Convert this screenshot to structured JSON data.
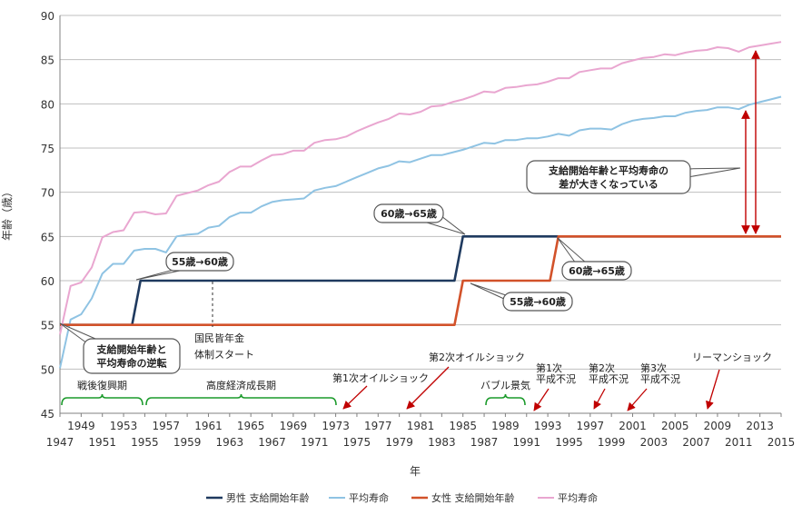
{
  "chart_data": {
    "type": "line",
    "xlabel": "年",
    "ylabel": "年齢（歳）",
    "xlim": [
      1947,
      2015
    ],
    "ylim": [
      45,
      90
    ],
    "y_ticks": [
      45,
      50,
      55,
      60,
      65,
      70,
      75,
      80,
      85,
      90
    ],
    "x_ticks_bottom": [
      1947,
      1951,
      1955,
      1959,
      1963,
      1967,
      1971,
      1975,
      1979,
      1983,
      1987,
      1991,
      1995,
      1999,
      2003,
      2007,
      2011,
      2015
    ],
    "x_ticks_top": [
      1949,
      1953,
      1957,
      1961,
      1965,
      1969,
      1973,
      1977,
      1981,
      1985,
      1989,
      1993,
      1997,
      2001,
      2005,
      2009,
      2013
    ],
    "grid": "horizontal",
    "legend_position": "bottom",
    "series": [
      {
        "name": "男性 支給開始年齢",
        "color": "#1f3a5f",
        "points": [
          [
            1947,
            55
          ],
          [
            1953.8,
            55
          ],
          [
            1954.6,
            60
          ],
          [
            1984.2,
            60
          ],
          [
            1985,
            65
          ],
          [
            2015,
            65
          ]
        ]
      },
      {
        "name": "平均寿命",
        "color": "#8fc3e3",
        "points": [
          [
            1947,
            50.1
          ],
          [
            1948,
            55.6
          ],
          [
            1949,
            56.2
          ],
          [
            1950,
            58.0
          ],
          [
            1951,
            60.8
          ],
          [
            1952,
            61.9
          ],
          [
            1953,
            61.9
          ],
          [
            1954,
            63.4
          ],
          [
            1955,
            63.6
          ],
          [
            1956,
            63.6
          ],
          [
            1957,
            63.2
          ],
          [
            1958,
            65.0
          ],
          [
            1959,
            65.2
          ],
          [
            1960,
            65.3
          ],
          [
            1961,
            66.0
          ],
          [
            1962,
            66.2
          ],
          [
            1963,
            67.2
          ],
          [
            1964,
            67.7
          ],
          [
            1965,
            67.7
          ],
          [
            1966,
            68.4
          ],
          [
            1967,
            68.9
          ],
          [
            1968,
            69.1
          ],
          [
            1969,
            69.2
          ],
          [
            1970,
            69.3
          ],
          [
            1971,
            70.2
          ],
          [
            1972,
            70.5
          ],
          [
            1973,
            70.7
          ],
          [
            1974,
            71.2
          ],
          [
            1975,
            71.7
          ],
          [
            1976,
            72.2
          ],
          [
            1977,
            72.7
          ],
          [
            1978,
            73.0
          ],
          [
            1979,
            73.5
          ],
          [
            1980,
            73.4
          ],
          [
            1981,
            73.8
          ],
          [
            1982,
            74.2
          ],
          [
            1983,
            74.2
          ],
          [
            1984,
            74.5
          ],
          [
            1985,
            74.8
          ],
          [
            1986,
            75.2
          ],
          [
            1987,
            75.6
          ],
          [
            1988,
            75.5
          ],
          [
            1989,
            75.9
          ],
          [
            1990,
            75.9
          ],
          [
            1991,
            76.1
          ],
          [
            1992,
            76.1
          ],
          [
            1993,
            76.3
          ],
          [
            1994,
            76.6
          ],
          [
            1995,
            76.4
          ],
          [
            1996,
            77.0
          ],
          [
            1997,
            77.2
          ],
          [
            1998,
            77.2
          ],
          [
            1999,
            77.1
          ],
          [
            2000,
            77.7
          ],
          [
            2001,
            78.1
          ],
          [
            2002,
            78.3
          ],
          [
            2003,
            78.4
          ],
          [
            2004,
            78.6
          ],
          [
            2005,
            78.6
          ],
          [
            2006,
            79.0
          ],
          [
            2007,
            79.2
          ],
          [
            2008,
            79.3
          ],
          [
            2009,
            79.6
          ],
          [
            2010,
            79.6
          ],
          [
            2011,
            79.4
          ],
          [
            2012,
            79.9
          ],
          [
            2013,
            80.2
          ],
          [
            2014,
            80.5
          ],
          [
            2015,
            80.8
          ]
        ]
      },
      {
        "name": "女性 支給開始年齢",
        "color": "#d2522a",
        "points": [
          [
            1947,
            55
          ],
          [
            1984.2,
            55
          ],
          [
            1985,
            60
          ],
          [
            1993.2,
            60
          ],
          [
            1994,
            65
          ],
          [
            2015,
            65
          ]
        ]
      },
      {
        "name": "平均寿命",
        "color": "#e9a6d0",
        "points": [
          [
            1947,
            53.9
          ],
          [
            1948,
            59.4
          ],
          [
            1949,
            59.8
          ],
          [
            1950,
            61.5
          ],
          [
            1951,
            64.9
          ],
          [
            1952,
            65.5
          ],
          [
            1953,
            65.7
          ],
          [
            1954,
            67.7
          ],
          [
            1955,
            67.8
          ],
          [
            1956,
            67.5
          ],
          [
            1957,
            67.6
          ],
          [
            1958,
            69.6
          ],
          [
            1959,
            69.9
          ],
          [
            1960,
            70.2
          ],
          [
            1961,
            70.8
          ],
          [
            1962,
            71.2
          ],
          [
            1963,
            72.3
          ],
          [
            1964,
            72.9
          ],
          [
            1965,
            72.9
          ],
          [
            1966,
            73.6
          ],
          [
            1967,
            74.2
          ],
          [
            1968,
            74.3
          ],
          [
            1969,
            74.7
          ],
          [
            1970,
            74.7
          ],
          [
            1971,
            75.6
          ],
          [
            1972,
            75.9
          ],
          [
            1973,
            76.0
          ],
          [
            1974,
            76.3
          ],
          [
            1975,
            76.9
          ],
          [
            1976,
            77.4
          ],
          [
            1977,
            77.9
          ],
          [
            1978,
            78.3
          ],
          [
            1979,
            78.9
          ],
          [
            1980,
            78.8
          ],
          [
            1981,
            79.1
          ],
          [
            1982,
            79.7
          ],
          [
            1983,
            79.8
          ],
          [
            1984,
            80.2
          ],
          [
            1985,
            80.5
          ],
          [
            1986,
            80.9
          ],
          [
            1987,
            81.4
          ],
          [
            1988,
            81.3
          ],
          [
            1989,
            81.8
          ],
          [
            1990,
            81.9
          ],
          [
            1991,
            82.1
          ],
          [
            1992,
            82.2
          ],
          [
            1993,
            82.5
          ],
          [
            1994,
            82.9
          ],
          [
            1995,
            82.9
          ],
          [
            1996,
            83.6
          ],
          [
            1997,
            83.8
          ],
          [
            1998,
            84.0
          ],
          [
            1999,
            84.0
          ],
          [
            2000,
            84.6
          ],
          [
            2001,
            84.9
          ],
          [
            2002,
            85.2
          ],
          [
            2003,
            85.3
          ],
          [
            2004,
            85.6
          ],
          [
            2005,
            85.5
          ],
          [
            2006,
            85.8
          ],
          [
            2007,
            86.0
          ],
          [
            2008,
            86.1
          ],
          [
            2009,
            86.4
          ],
          [
            2010,
            86.3
          ],
          [
            2011,
            85.9
          ],
          [
            2012,
            86.4
          ],
          [
            2013,
            86.6
          ],
          [
            2014,
            86.8
          ],
          [
            2015,
            87.0
          ]
        ]
      }
    ],
    "annotations": {
      "callout_gap": "支給開始年齢と平均寿命の\n差が大きくなっている",
      "callout_reversal": "支給開始年齢と\n平均寿命の逆転",
      "callout_m55": "55歳→60歳",
      "callout_m60": "60歳→65歳",
      "callout_f55": "55歳→60歳",
      "callout_f60": "60歳→65歳",
      "pension_start": "国民皆年金\n体制スタート",
      "period_postwar": "戦後復興期",
      "period_growth": "高度経済成長期",
      "period_bubble": "バブル景気",
      "event_oil1": "第1次オイルショック",
      "event_oil2": "第2次オイルショック",
      "event_heisei1": "第1次\n平成不況",
      "event_heisei2": "第2次\n平成不況",
      "event_heisei3": "第3次\n平成不況",
      "event_lehman": "リーマンショック"
    }
  }
}
